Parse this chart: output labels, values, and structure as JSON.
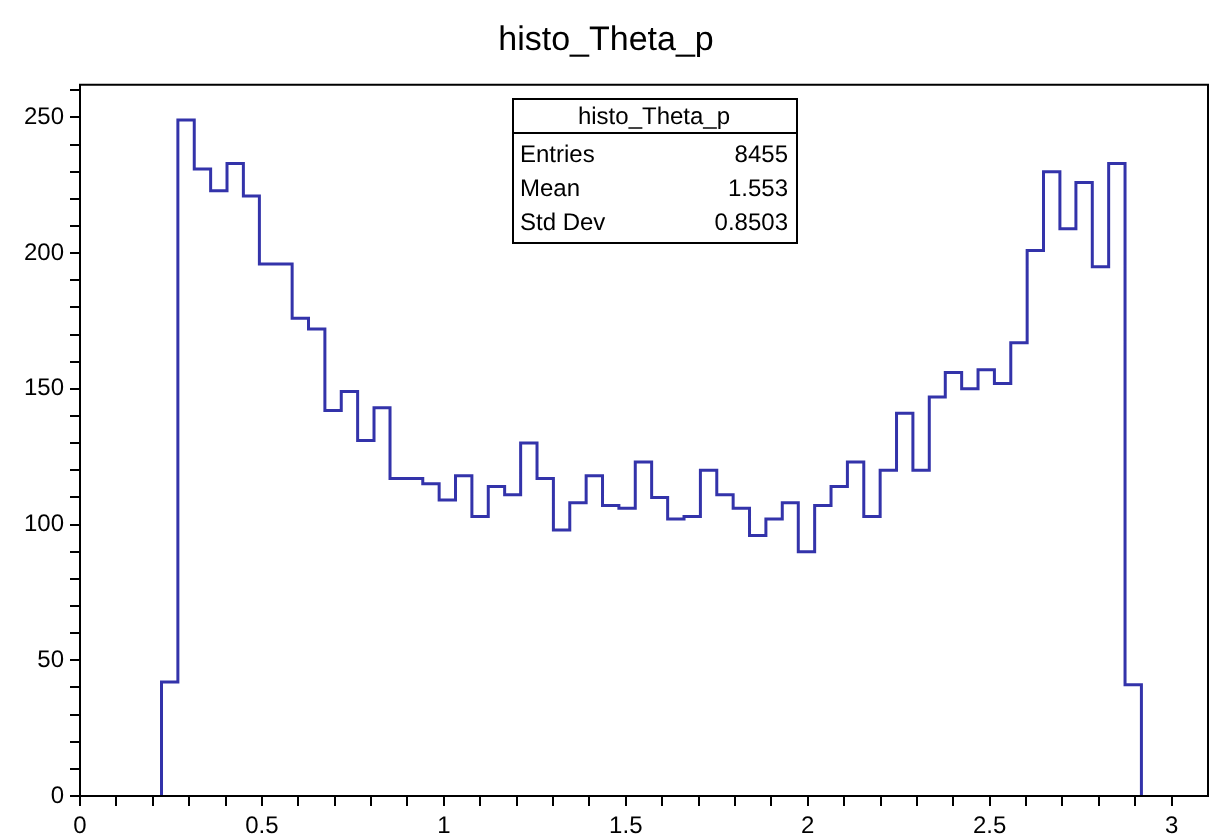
{
  "chart_data": {
    "type": "histogram",
    "title": "histo_Theta_p",
    "bins": [
      0.224,
      0.269,
      0.314,
      0.359,
      0.404,
      0.449,
      0.493,
      0.538,
      0.583,
      0.628,
      0.673,
      0.718,
      0.763,
      0.808,
      0.852,
      0.897,
      0.942,
      0.987,
      1.032,
      1.077,
      1.122,
      1.167,
      1.211,
      1.256,
      1.301,
      1.346,
      1.391,
      1.436,
      1.481,
      1.526,
      1.571,
      1.615,
      1.66,
      1.705,
      1.75,
      1.795,
      1.84,
      1.885,
      1.93,
      1.974,
      2.019,
      2.064,
      2.109,
      2.154,
      2.199,
      2.244,
      2.289,
      2.334,
      2.378,
      2.423,
      2.468,
      2.513,
      2.558,
      2.603,
      2.648,
      2.693,
      2.737,
      2.782,
      2.827,
      2.872,
      2.917
    ],
    "values": [
      42,
      249,
      231,
      223,
      233,
      221,
      196,
      196,
      176,
      172,
      142,
      149,
      131,
      143,
      117,
      117,
      115,
      109,
      118,
      103,
      114,
      111,
      130,
      117,
      98,
      108,
      118,
      107,
      106,
      123,
      110,
      102,
      103,
      120,
      111,
      106,
      96,
      102,
      108,
      90,
      107,
      114,
      123,
      103,
      120,
      141,
      120,
      147,
      156,
      150,
      157,
      152,
      167,
      201,
      230,
      209,
      226,
      195,
      233,
      41
    ],
    "color": "#3333aa",
    "xlim": [
      0,
      3.1
    ],
    "xticks": [
      0,
      {
        "value": 0.1,
        "label": null
      },
      {
        "value": 0.2,
        "label": null
      },
      {
        "value": 0.3,
        "label": null
      },
      {
        "value": 0.4,
        "label": null
      },
      0.5,
      {
        "value": 0.6,
        "label": null
      },
      {
        "value": 0.7,
        "label": null
      },
      {
        "value": 0.8,
        "label": null
      },
      {
        "value": 0.9,
        "label": null
      },
      1,
      {
        "value": 1.1,
        "label": null
      },
      {
        "value": 1.2,
        "label": null
      },
      {
        "value": 1.3,
        "label": null
      },
      {
        "value": 1.4,
        "label": null
      },
      1.5,
      {
        "value": 1.6,
        "label": null
      },
      {
        "value": 1.7,
        "label": null
      },
      {
        "value": 1.8,
        "label": null
      },
      {
        "value": 1.9,
        "label": null
      },
      2,
      {
        "value": 2.1,
        "label": null
      },
      {
        "value": 2.2,
        "label": null
      },
      {
        "value": 2.3,
        "label": null
      },
      {
        "value": 2.4,
        "label": null
      },
      2.5,
      {
        "value": 2.6,
        "label": null
      },
      {
        "value": 2.7,
        "label": null
      },
      {
        "value": 2.8,
        "label": null
      },
      {
        "value": 2.9,
        "label": null
      },
      3
    ],
    "ylim": [
      0,
      262
    ],
    "yticks": [
      0,
      {
        "value": 10,
        "label": null
      },
      {
        "value": 20,
        "label": null
      },
      {
        "value": 30,
        "label": null
      },
      {
        "value": 40,
        "label": null
      },
      50,
      {
        "value": 60,
        "label": null
      },
      {
        "value": 70,
        "label": null
      },
      {
        "value": 80,
        "label": null
      },
      {
        "value": 90,
        "label": null
      },
      100,
      {
        "value": 110,
        "label": null
      },
      {
        "value": 120,
        "label": null
      },
      {
        "value": 130,
        "label": null
      },
      {
        "value": 140,
        "label": null
      },
      150,
      {
        "value": 160,
        "label": null
      },
      {
        "value": 170,
        "label": null
      },
      {
        "value": 180,
        "label": null
      },
      {
        "value": 190,
        "label": null
      },
      200,
      {
        "value": 210,
        "label": null
      },
      {
        "value": 220,
        "label": null
      },
      {
        "value": 230,
        "label": null
      },
      {
        "value": 240,
        "label": null
      },
      250,
      {
        "value": 260,
        "label": null
      }
    ],
    "annotations": [
      "histo_Theta_p",
      "Entries",
      "8455",
      "Mean",
      "1.553",
      "Std Dev",
      "0.8503"
    ],
    "grid": false,
    "legend": false
  }
}
